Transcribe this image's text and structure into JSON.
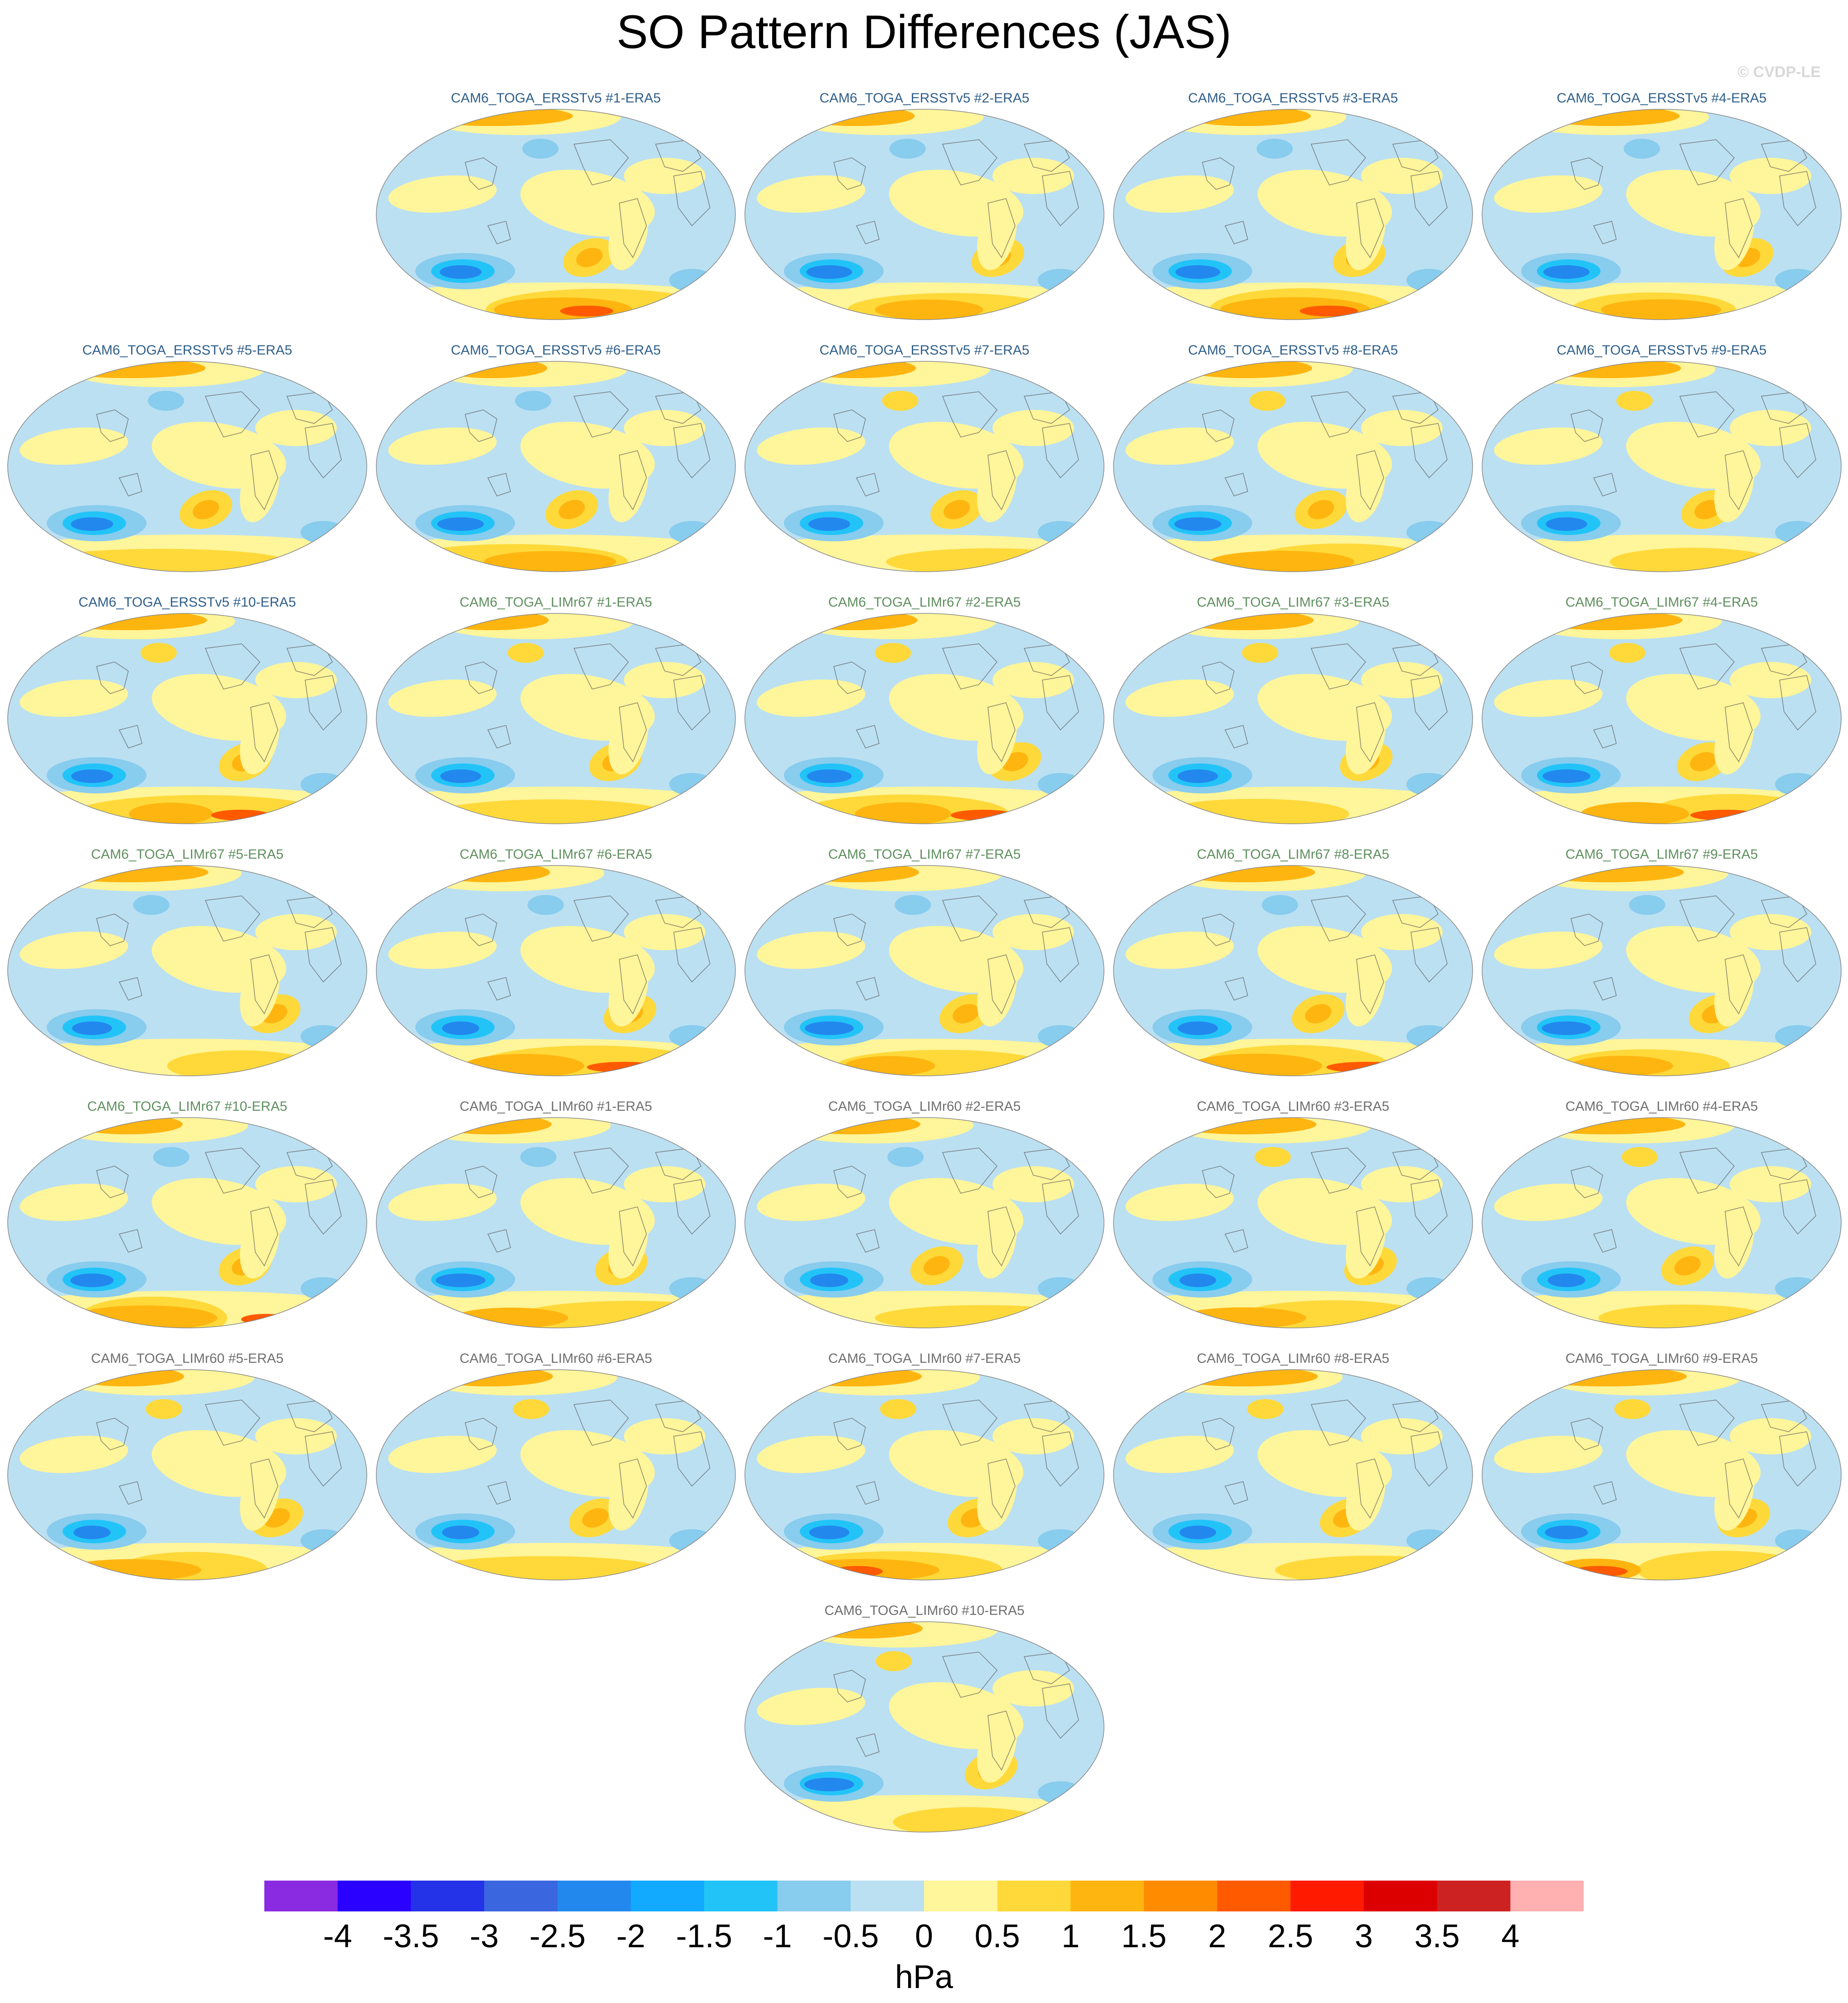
{
  "title": "SO Pattern Differences (JAS)",
  "copyright": "© CVDP-LE",
  "units": "hPa",
  "colorbar": {
    "labels": [
      "-4",
      "-3.5",
      "-3",
      "-2.5",
      "-2",
      "-1.5",
      "-1",
      "-0.5",
      "0",
      "0.5",
      "1",
      "1.5",
      "2",
      "2.5",
      "3",
      "3.5",
      "4"
    ],
    "colors": [
      "#8a2be2",
      "#2a00ff",
      "#2433e8",
      "#3a66e0",
      "#2288ee",
      "#11aaff",
      "#22c4f8",
      "#88ccee",
      "#bbe0f2",
      "#fff59a",
      "#ffd93a",
      "#ffb510",
      "#ff8c00",
      "#ff5a00",
      "#ff1a00",
      "#dd0000",
      "#cc2222",
      "#ffb0b0"
    ]
  },
  "panels": [
    {
      "title": "CAM6_TOGA_ERSSTv5 #1-ERA5",
      "color": "#2f5f8a"
    },
    {
      "title": "CAM6_TOGA_ERSSTv5 #2-ERA5",
      "color": "#2f5f8a"
    },
    {
      "title": "CAM6_TOGA_ERSSTv5 #3-ERA5",
      "color": "#2f5f8a"
    },
    {
      "title": "CAM6_TOGA_ERSSTv5 #4-ERA5",
      "color": "#2f5f8a"
    },
    {
      "title": "CAM6_TOGA_ERSSTv5 #5-ERA5",
      "color": "#2f5f8a"
    },
    {
      "title": "CAM6_TOGA_ERSSTv5 #6-ERA5",
      "color": "#2f5f8a"
    },
    {
      "title": "CAM6_TOGA_ERSSTv5 #7-ERA5",
      "color": "#2f5f8a"
    },
    {
      "title": "CAM6_TOGA_ERSSTv5 #8-ERA5",
      "color": "#2f5f8a"
    },
    {
      "title": "CAM6_TOGA_ERSSTv5 #9-ERA5",
      "color": "#2f5f8a"
    },
    {
      "title": "CAM6_TOGA_ERSSTv5 #10-ERA5",
      "color": "#2f5f8a"
    },
    {
      "title": "CAM6_TOGA_LIMr67 #1-ERA5",
      "color": "#5f8f5f"
    },
    {
      "title": "CAM6_TOGA_LIMr67 #2-ERA5",
      "color": "#5f8f5f"
    },
    {
      "title": "CAM6_TOGA_LIMr67 #3-ERA5",
      "color": "#5f8f5f"
    },
    {
      "title": "CAM6_TOGA_LIMr67 #4-ERA5",
      "color": "#5f8f5f"
    },
    {
      "title": "CAM6_TOGA_LIMr67 #5-ERA5",
      "color": "#5f8f5f"
    },
    {
      "title": "CAM6_TOGA_LIMr67 #6-ERA5",
      "color": "#5f8f5f"
    },
    {
      "title": "CAM6_TOGA_LIMr67 #7-ERA5",
      "color": "#5f8f5f"
    },
    {
      "title": "CAM6_TOGA_LIMr67 #8-ERA5",
      "color": "#5f8f5f"
    },
    {
      "title": "CAM6_TOGA_LIMr67 #9-ERA5",
      "color": "#5f8f5f"
    },
    {
      "title": "CAM6_TOGA_LIMr67 #10-ERA5",
      "color": "#5f8f5f"
    },
    {
      "title": "CAM6_TOGA_LIMr60 #1-ERA5",
      "color": "#6f6f6f"
    },
    {
      "title": "CAM6_TOGA_LIMr60 #2-ERA5",
      "color": "#6f6f6f"
    },
    {
      "title": "CAM6_TOGA_LIMr60 #3-ERA5",
      "color": "#6f6f6f"
    },
    {
      "title": "CAM6_TOGA_LIMr60 #4-ERA5",
      "color": "#6f6f6f"
    },
    {
      "title": "CAM6_TOGA_LIMr60 #5-ERA5",
      "color": "#6f6f6f"
    },
    {
      "title": "CAM6_TOGA_LIMr60 #6-ERA5",
      "color": "#6f6f6f"
    },
    {
      "title": "CAM6_TOGA_LIMr60 #7-ERA5",
      "color": "#6f6f6f"
    },
    {
      "title": "CAM6_TOGA_LIMr60 #8-ERA5",
      "color": "#6f6f6f"
    },
    {
      "title": "CAM6_TOGA_LIMr60 #9-ERA5",
      "color": "#6f6f6f"
    },
    {
      "title": "CAM6_TOGA_LIMr60 #10-ERA5",
      "color": "#6f6f6f"
    }
  ]
}
